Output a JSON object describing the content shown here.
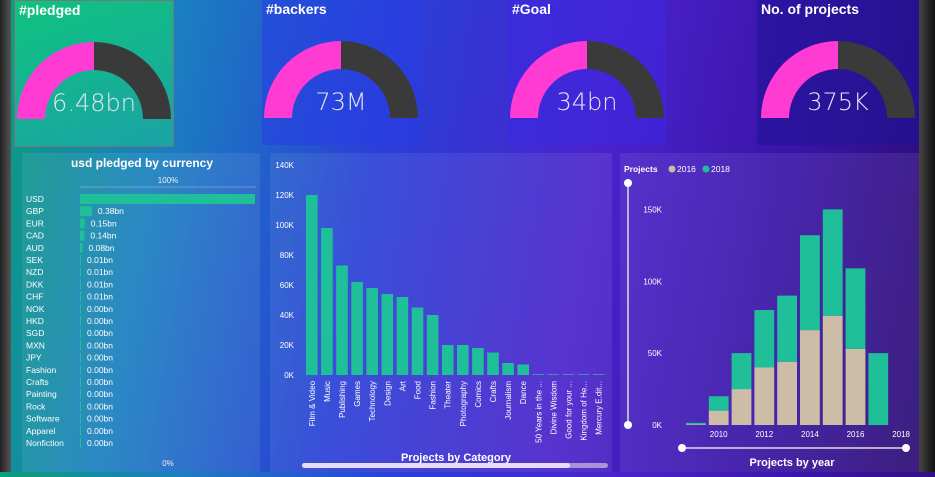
{
  "colors": {
    "gauge_fill": "#ff3bd4",
    "gauge_empty": "#3a3a3a",
    "teal": "#1fbf9a",
    "beige": "#cdbda6"
  },
  "kpis": [
    {
      "title": "#pledged",
      "value": "6.48bn",
      "fraction": 0.5
    },
    {
      "title": "#backers",
      "value": "73M",
      "fraction": 0.5
    },
    {
      "title": "#Goal",
      "value": "34bn",
      "fraction": 0.5
    },
    {
      "title": "No. of projects",
      "value": "375K",
      "fraction": 0.5
    }
  ],
  "chart_data": [
    {
      "type": "bar",
      "orientation": "horizontal",
      "title": "usd pledged by currency",
      "top_label": "100%",
      "bottom_label": "0%",
      "categories": [
        "USD",
        "GBP",
        "EUR",
        "CAD",
        "AUD",
        "SEK",
        "NZD",
        "DKK",
        "CHF",
        "NOK",
        "HKD",
        "SGD",
        "MXN",
        "JPY",
        "Fashion",
        "Crafts",
        "Painting",
        "Rock",
        "Software",
        "Apparel",
        "Nonfiction"
      ],
      "values": [
        5.6,
        0.38,
        0.15,
        0.14,
        0.08,
        0.01,
        0.01,
        0.01,
        0.01,
        0.0,
        0.0,
        0.0,
        0.0,
        0.0,
        0.0,
        0.0,
        0.0,
        0.0,
        0.0,
        0.0,
        0.0
      ],
      "data_labels": [
        "",
        "0.38bn",
        "0.15bn",
        "0.14bn",
        "0.08bn",
        "0.01bn",
        "0.01bn",
        "0.01bn",
        "0.01bn",
        "0.00bn",
        "0.00bn",
        "0.00bn",
        "0.00bn",
        "0.00bn",
        "0.00bn",
        "0.00bn",
        "0.00bn",
        "0.00bn",
        "0.00bn",
        "0.00bn",
        "0.00bn"
      ]
    },
    {
      "type": "bar",
      "title": "Projects by Category",
      "categories": [
        "Film & Video",
        "Music",
        "Publishing",
        "Games",
        "Technology",
        "Design",
        "Art",
        "Food",
        "Fashion",
        "Theater",
        "Photography",
        "Comics",
        "Crafts",
        "Journalism",
        "Dance",
        "50 Years in the ...",
        "Divine Wisdom",
        "Good for your ...",
        "Kingdom of He...",
        "Mercury E.dit..."
      ],
      "values": [
        120,
        98,
        73,
        62,
        58,
        54,
        52,
        45,
        40,
        20,
        20,
        18,
        15,
        8,
        7,
        0.5,
        0.5,
        0.5,
        0.5,
        0.5
      ],
      "y_ticks": [
        "0K",
        "20K",
        "40K",
        "60K",
        "80K",
        "100K",
        "120K",
        "140K"
      ],
      "ylim": [
        0,
        140
      ]
    },
    {
      "type": "bar",
      "stacked": true,
      "title": "Projects by year",
      "legend_title": "Projects",
      "x": [
        2009,
        2010,
        2011,
        2012,
        2013,
        2014,
        2015,
        2016,
        2017
      ],
      "x_ticks": [
        "2010",
        "2012",
        "2014",
        "2016",
        "2018"
      ],
      "y_ticks": [
        "0K",
        "50K",
        "100K",
        "150K"
      ],
      "ylim": [
        0,
        160
      ],
      "series": [
        {
          "name": "2016",
          "color": "#cdbda6",
          "values": [
            0.5,
            10,
            25,
            40,
            44,
            66,
            76,
            53,
            0
          ]
        },
        {
          "name": "2018",
          "color": "#1fbf9a",
          "values": [
            1,
            10,
            25,
            40,
            46,
            66,
            74,
            56,
            50
          ]
        }
      ]
    }
  ]
}
